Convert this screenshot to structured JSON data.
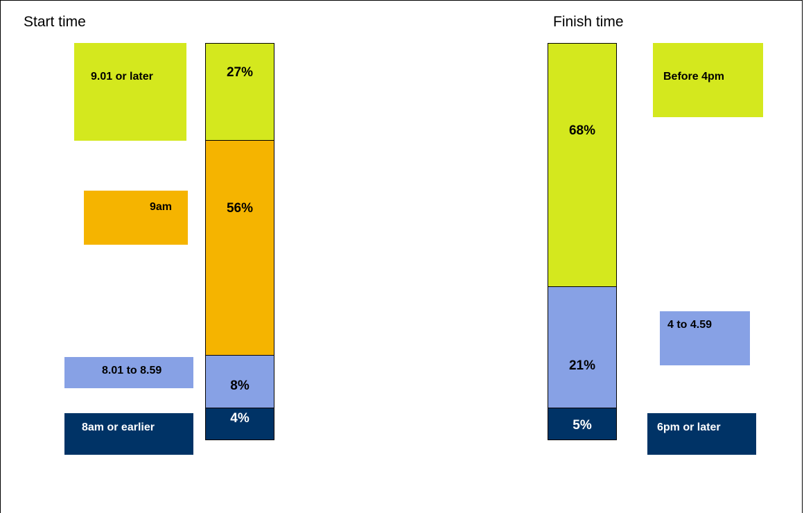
{
  "chart_data": [
    {
      "type": "bar",
      "stacked": true,
      "title": "Start time",
      "series": [
        {
          "name": "8am or earlier",
          "value": 4,
          "label": "4%",
          "color": "#003366"
        },
        {
          "name": "8.01 to 8.59",
          "value": 8,
          "label": "8%",
          "color": "#87A1E5"
        },
        {
          "name": "9am",
          "value": 56,
          "label": "56%",
          "color": "#F5B400"
        },
        {
          "name": "9.01 or later",
          "value": 27,
          "label": "27%",
          "color": "#D4E81E"
        }
      ]
    },
    {
      "type": "bar",
      "stacked": true,
      "title": "Finish time",
      "series": [
        {
          "name": "6pm or later",
          "value": 5,
          "label": "5%",
          "color": "#003366"
        },
        {
          "name": "4 to 4.59",
          "value": 21,
          "label": "21%",
          "color": "#87A1E5"
        },
        {
          "name": "Before 4pm",
          "value": 68,
          "label": "68%",
          "color": "#D4E81E"
        }
      ]
    }
  ]
}
